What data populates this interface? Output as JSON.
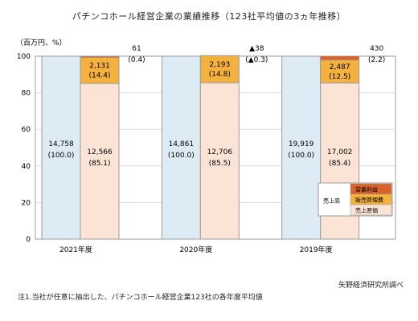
{
  "header": {
    "title": "パチンコホール経営企業の業績推移（123社平均値の3ヵ年推移）"
  },
  "chart_data": {
    "type": "bar",
    "unit_label": "（百万円、%）",
    "ylim": [
      0,
      100
    ],
    "yticks": [
      0,
      20,
      40,
      60,
      80,
      100
    ],
    "grid": true,
    "categories": [
      "2021年度",
      "2020年度",
      "2019年度"
    ],
    "revenue_labels": [
      {
        "value": "14,758",
        "pct": "(100.0)"
      },
      {
        "value": "14,861",
        "pct": "(100.0)"
      },
      {
        "value": "19,919",
        "pct": "(100.0)"
      }
    ],
    "series": [
      {
        "name": "売上原価",
        "values": [
          85.1,
          85.5,
          85.4
        ],
        "value_labels": [
          "12,566",
          "12,706",
          "17,002"
        ],
        "pct_labels": [
          "(85.1)",
          "(85.5)",
          "(85.4)"
        ]
      },
      {
        "name": "販売管理費",
        "values": [
          14.4,
          14.8,
          12.5
        ],
        "value_labels": [
          "2,131",
          "2,193",
          "2,487"
        ],
        "pct_labels": [
          "(14.4)",
          "(14.8)",
          "(12.5)"
        ]
      },
      {
        "name": "営業利益",
        "values": [
          0.4,
          -0.3,
          2.2
        ],
        "value_labels": [
          "61",
          "▲38",
          "430"
        ],
        "pct_labels": [
          "(0.4)",
          "(▲0.3)",
          "(2.2)"
        ]
      }
    ],
    "legend": {
      "title": "売上高",
      "entries": [
        "営業利益",
        "販売管理費",
        "売上原価"
      ],
      "placement": "bottom-right inside plot"
    },
    "colors": {
      "revenue": "#dcebf4",
      "cost": "#fbe4d6",
      "sga": "#f5b13e",
      "profit": "#d9632b",
      "border": "#9b9b9b",
      "grid": "#d9d9d9"
    }
  },
  "footer": {
    "source": "矢野経済研究所調べ",
    "note": "注1.当社が任意に抽出した、パチンコホール経営企業123社の各年度平均値"
  }
}
